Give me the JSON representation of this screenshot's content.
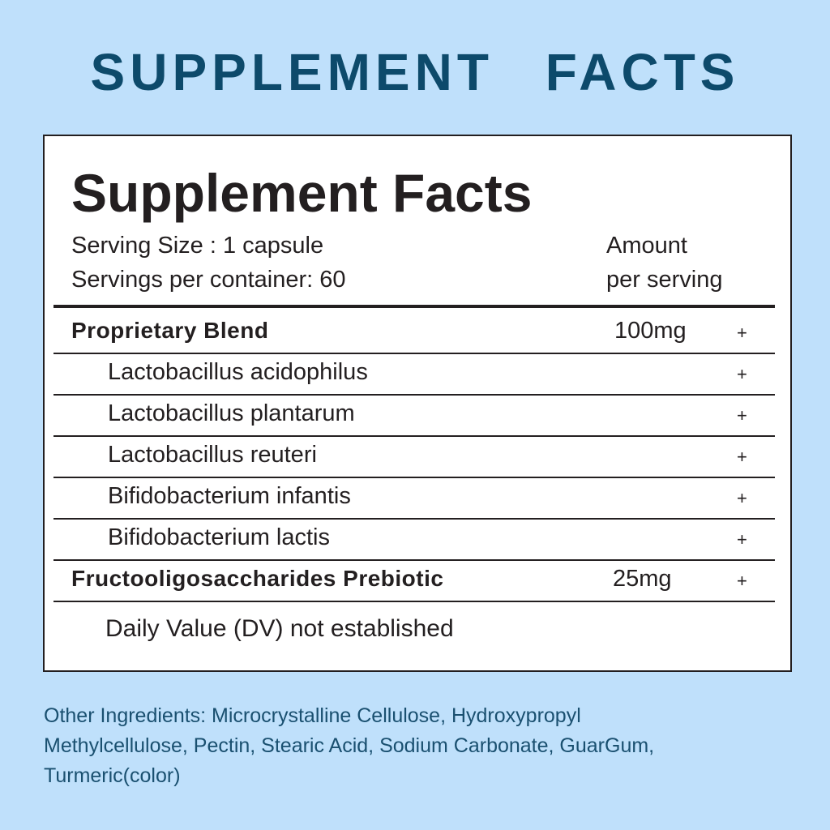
{
  "banner": "SUPPLEMENT FACTS",
  "label": {
    "title": "Supplement Facts",
    "serving_size": "Serving Size : 1 capsule",
    "servings_per_container": "Servings per container: 60",
    "amount_header": [
      "Amount",
      "per serving"
    ],
    "rows": [
      {
        "name": "Proprietary Blend",
        "amount": "100mg",
        "mark": "+",
        "bold": true
      },
      {
        "name": "Lactobacillus acidophilus",
        "mark": "+"
      },
      {
        "name": "Lactobacillus plantarum",
        "mark": "+"
      },
      {
        "name": "Lactobacillus reuteri",
        "mark": "+"
      },
      {
        "name": "Bifidobacterium infantis",
        "mark": "+"
      },
      {
        "name": "Bifidobacterium lactis",
        "mark": "+"
      },
      {
        "name": "Fructooligosaccharides Prebiotic",
        "amount": "25mg",
        "mark": "+",
        "bold": true
      }
    ],
    "footnote": "Daily Value (DV) not established"
  },
  "other_ingredients": [
    "Other Ingredients: Microcrystalline Cellulose, Hydroxypropyl",
    "Methylcellulose, Pectin, Stearic Acid, Sodium Carbonate, GuarGum,",
    "Turmeric(color)"
  ]
}
